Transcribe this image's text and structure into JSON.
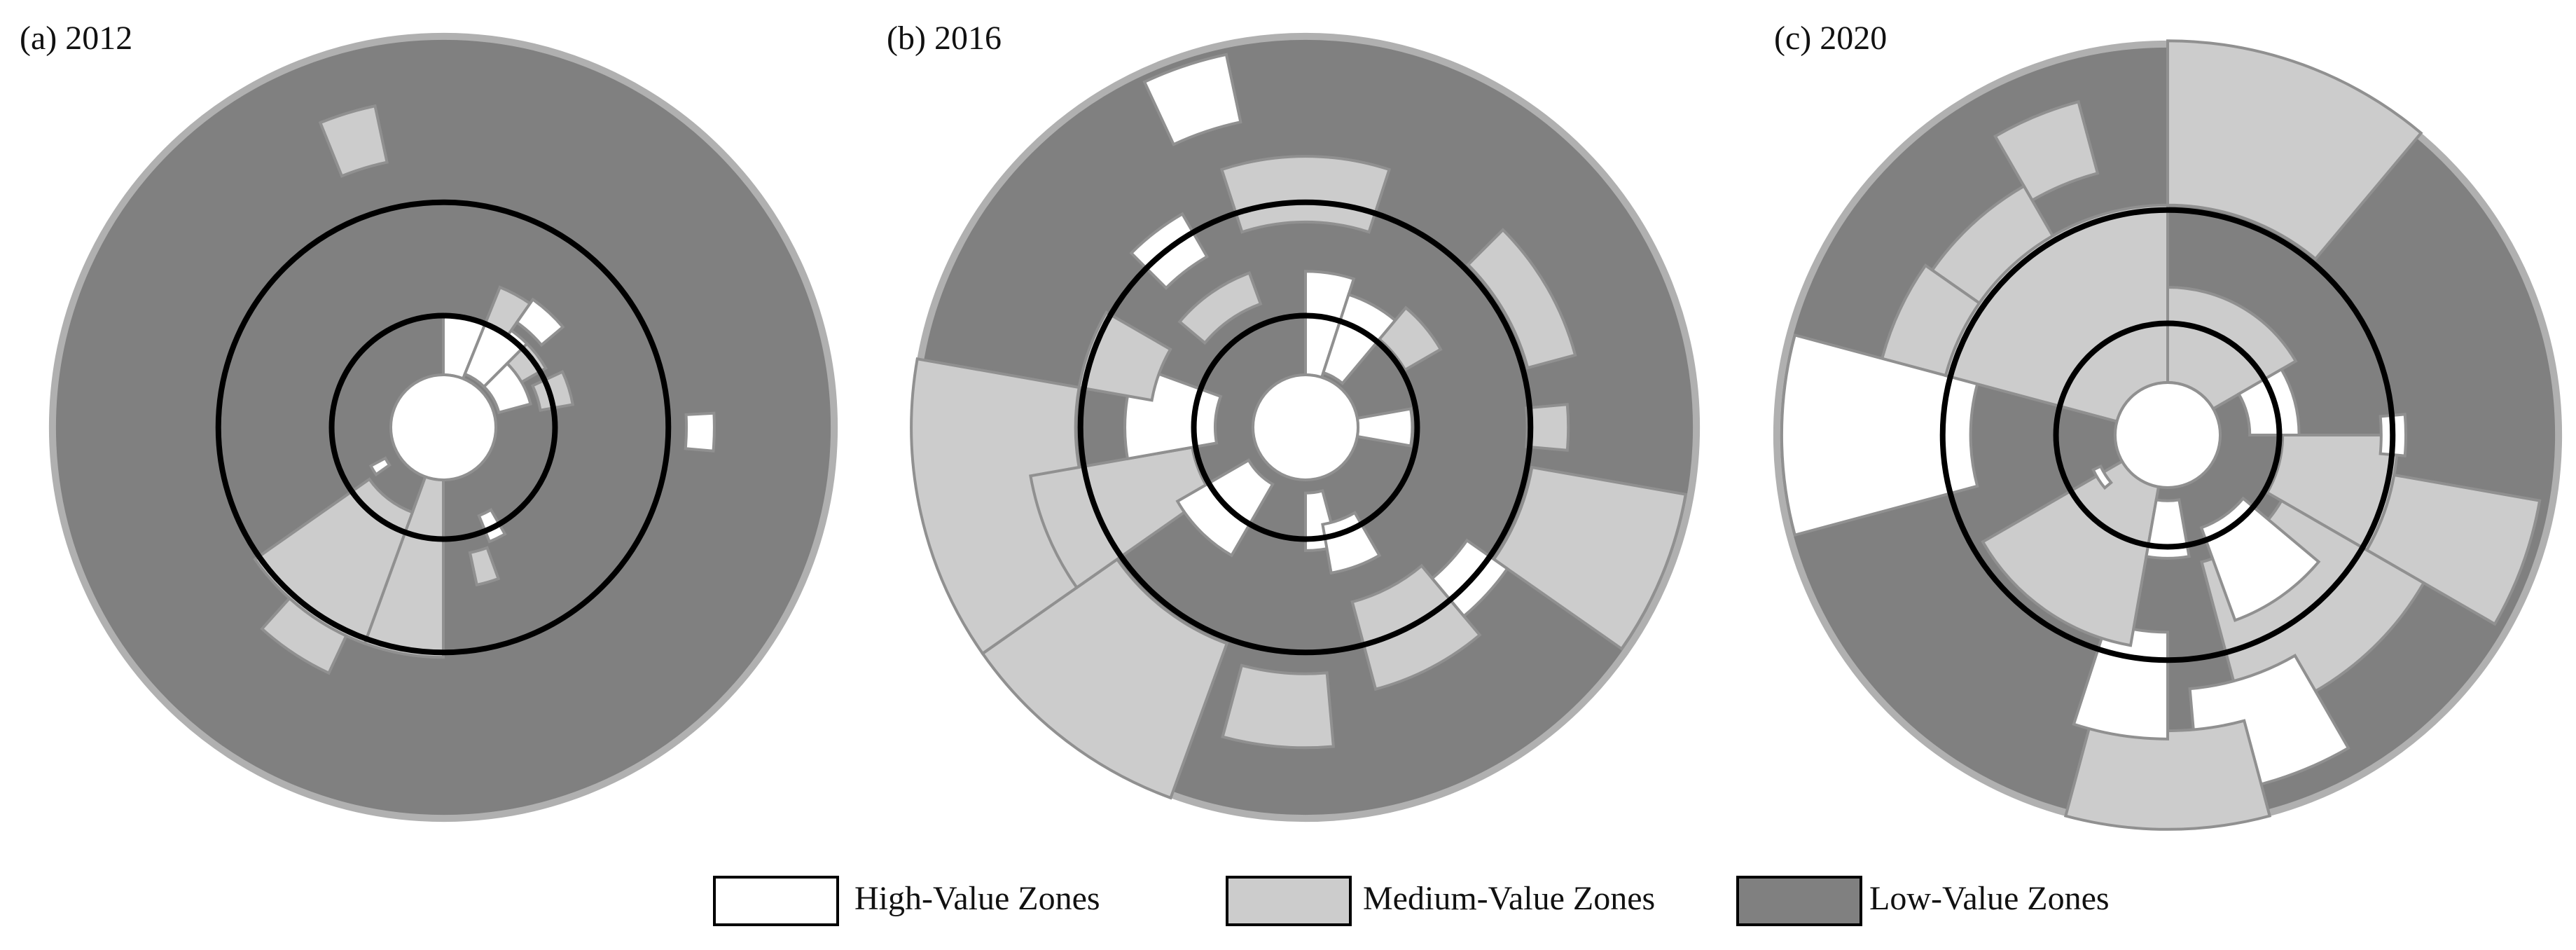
{
  "panels": [
    {
      "title": "(a) 2012"
    },
    {
      "title": "(b) 2016"
    },
    {
      "title": "(c) 2020"
    }
  ],
  "legend": [
    {
      "label": "High-Value Zones",
      "color": "#ffffff"
    },
    {
      "label": "Medium-Value Zones",
      "color": "#cccccc"
    },
    {
      "label": "Low-Value Zones",
      "color": "#808080"
    }
  ]
}
